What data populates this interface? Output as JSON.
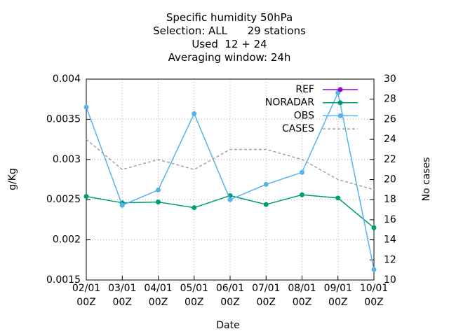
{
  "chart_data": {
    "type": "line",
    "title": [
      "Specific humidity 50hPa",
      "Selection: ALL      29 stations",
      "Used  12 + 24",
      "Averaging window: 24h"
    ],
    "xlabel": "Date",
    "ylabel": "g/Kg",
    "y2label": "No cases",
    "categories": [
      "02/01 00Z",
      "03/01 00Z",
      "04/01 00Z",
      "05/01 00Z",
      "06/01 00Z",
      "07/01 00Z",
      "08/01 00Z",
      "09/01 00Z",
      "10/01 00Z"
    ],
    "ylim": [
      0.0015,
      0.004
    ],
    "yticks": [
      0.0015,
      0.002,
      0.0025,
      0.003,
      0.0035,
      0.004
    ],
    "y2lim": [
      10,
      30
    ],
    "y2ticks": [
      10,
      12,
      14,
      16,
      18,
      20,
      22,
      24,
      26,
      28,
      30
    ],
    "grid": true,
    "legend": "top-right",
    "series": [
      {
        "name": "REF",
        "color": "#9400d3",
        "values": [
          null,
          null,
          null,
          null,
          null,
          null,
          null,
          null,
          null
        ]
      },
      {
        "name": "NORADAR",
        "color": "#009e73",
        "values": [
          0.00254,
          0.00246,
          0.00247,
          0.0024,
          0.00255,
          0.00244,
          0.00256,
          0.00252,
          0.00215
        ]
      },
      {
        "name": "OBS",
        "color": "#56b4e9",
        "values": [
          0.00365,
          0.00243,
          0.00262,
          0.00357,
          0.0025,
          0.00269,
          0.00284,
          0.00383,
          0.00163
        ]
      },
      {
        "name": "CASES",
        "color": "#a0a0a0",
        "dashed": true,
        "axis": "y2",
        "values": [
          24,
          21,
          22,
          21,
          23,
          23,
          22,
          20,
          19
        ]
      }
    ]
  }
}
